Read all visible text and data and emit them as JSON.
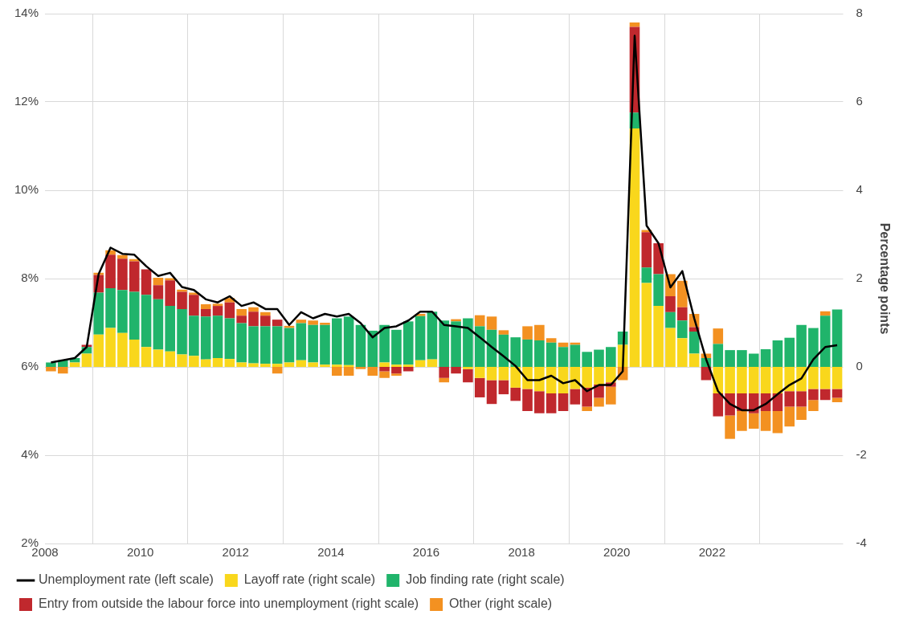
{
  "chart_data": {
    "type": "bar",
    "y2label": "Percentage points",
    "stacked": true,
    "grid": true,
    "legend": "bottom",
    "x": [
      2008.125,
      2008.375,
      2008.625,
      2008.875,
      2009.125,
      2009.375,
      2009.625,
      2009.875,
      2010.125,
      2010.375,
      2010.625,
      2010.875,
      2011.125,
      2011.375,
      2011.625,
      2011.875,
      2012.125,
      2012.375,
      2012.625,
      2012.875,
      2013.125,
      2013.375,
      2013.625,
      2013.875,
      2014.125,
      2014.375,
      2014.625,
      2014.875,
      2015.125,
      2015.375,
      2015.625,
      2015.875,
      2016.125,
      2016.375,
      2016.625,
      2016.875,
      2017.125,
      2017.375,
      2017.625,
      2017.875,
      2018.125,
      2018.375,
      2018.625,
      2018.875,
      2019.125,
      2019.375,
      2019.625,
      2019.875,
      2020.125,
      2020.375,
      2020.625,
      2020.875,
      2021.125,
      2021.375,
      2021.625,
      2021.875,
      2022.125,
      2022.375,
      2022.625,
      2022.875,
      2023.125,
      2023.375,
      2023.625,
      2023.875,
      2024.125,
      2024.375,
      2024.625
    ],
    "xlim": [
      2008,
      2024.75
    ],
    "xticks": [
      2008,
      2010,
      2012,
      2014,
      2016,
      2018,
      2020,
      2022
    ],
    "ylim": [
      2,
      14
    ],
    "yticks": [
      {
        "value": 2,
        "label": "2%"
      },
      {
        "value": 4,
        "label": "4%"
      },
      {
        "value": 6,
        "label": "6%"
      },
      {
        "value": 8,
        "label": "8%"
      },
      {
        "value": 10,
        "label": "10%"
      },
      {
        "value": 12,
        "label": "12%"
      },
      {
        "value": 14,
        "label": "14%"
      }
    ],
    "y2lim": [
      -4,
      8
    ],
    "y2ticks": [
      -4,
      -2,
      0,
      2,
      4,
      6,
      8
    ],
    "series": [
      {
        "name": "Unemployment rate (left scale)",
        "type": "line",
        "color": "#000000",
        "values": [
          6.1,
          6.15,
          6.2,
          6.45,
          8.1,
          8.7,
          8.56,
          8.54,
          8.28,
          8.06,
          8.13,
          7.81,
          7.74,
          7.53,
          7.46,
          7.6,
          7.38,
          7.46,
          7.31,
          7.31,
          6.95,
          7.24,
          7.1,
          7.2,
          7.14,
          7.2,
          6.99,
          6.67,
          6.88,
          6.92,
          7.05,
          7.25,
          7.25,
          6.95,
          6.92,
          6.88,
          6.67,
          6.45,
          6.24,
          6.02,
          5.7,
          5.7,
          5.8,
          5.63,
          5.7,
          5.45,
          5.59,
          5.59,
          5.9,
          13.5,
          9.2,
          8.8,
          7.8,
          8.17,
          7.1,
          6.17,
          5.45,
          5.16,
          5.02,
          5.02,
          5.16,
          5.38,
          5.59,
          5.74,
          6.17,
          6.45,
          6.49
        ]
      },
      {
        "name": "Layoff rate (right scale)",
        "axis": "y2",
        "color": "#f9d71c",
        "values": [
          0,
          0,
          0.1,
          0.3,
          0.73,
          0.88,
          0.77,
          0.62,
          0.45,
          0.39,
          0.35,
          0.28,
          0.25,
          0.17,
          0.2,
          0.18,
          0.1,
          0.08,
          0.07,
          0.07,
          0.1,
          0.15,
          0.1,
          0.05,
          0.05,
          0.04,
          0,
          0,
          0.1,
          0.05,
          0.05,
          0.15,
          0.17,
          0,
          0,
          -0.05,
          -0.25,
          -0.3,
          -0.3,
          -0.47,
          -0.5,
          -0.55,
          -0.6,
          -0.6,
          -0.5,
          -0.47,
          -0.4,
          -0.35,
          0.5,
          5.4,
          1.9,
          1.38,
          0.88,
          0.65,
          0.3,
          0,
          -0.6,
          -0.6,
          -0.6,
          -0.6,
          -0.6,
          -0.6,
          -0.55,
          -0.55,
          -0.5,
          -0.5,
          -0.5
        ]
      },
      {
        "name": "Job finding rate (right scale)",
        "axis": "y2",
        "color": "#20b46b",
        "values": [
          0.1,
          0.15,
          0.1,
          0.15,
          0.95,
          0.9,
          0.97,
          1.08,
          1.18,
          1.14,
          1.03,
          1.03,
          0.91,
          0.97,
          0.96,
          0.92,
          0.89,
          0.84,
          0.85,
          0.85,
          0.78,
          0.84,
          0.85,
          0.9,
          1.05,
          1.1,
          0.95,
          0.82,
          0.85,
          0.79,
          0.98,
          1.0,
          1.08,
          1.05,
          1.03,
          1.1,
          0.92,
          0.84,
          0.73,
          0.67,
          0.62,
          0.6,
          0.55,
          0.45,
          0.5,
          0.34,
          0.39,
          0.45,
          0.3,
          0.36,
          0.35,
          0.72,
          0.36,
          0.4,
          0.5,
          0.2,
          0.52,
          0.38,
          0.38,
          0.3,
          0.4,
          0.6,
          0.66,
          0.95,
          0.88,
          1.16,
          1.3
        ]
      },
      {
        "name": "Entry from outside the labour force into unemployment (right scale)",
        "axis": "y2",
        "color": "#c0282d",
        "values": [
          0,
          0,
          0,
          0.05,
          0.4,
          0.76,
          0.71,
          0.69,
          0.58,
          0.32,
          0.58,
          0.39,
          0.47,
          0.17,
          0.22,
          0.36,
          0.17,
          0.33,
          0.24,
          0.15,
          0,
          0,
          0,
          0,
          0,
          0,
          0,
          0,
          -0.1,
          -0.15,
          -0.1,
          0,
          null,
          -0.25,
          -0.15,
          -0.3,
          -0.44,
          -0.54,
          -0.32,
          -0.3,
          -0.5,
          -0.5,
          -0.45,
          -0.4,
          -0.35,
          -0.43,
          -0.3,
          -0.1,
          0,
          1.94,
          0.8,
          0.7,
          0.36,
          0.3,
          0.1,
          -0.3,
          -0.52,
          -0.5,
          -0.4,
          -0.45,
          -0.4,
          -0.4,
          -0.35,
          -0.35,
          -0.25,
          -0.25,
          -0.2
        ]
      },
      {
        "name": "Other (right scale)",
        "axis": "y2",
        "color": "#f39121",
        "values": [
          -0.1,
          -0.15,
          0,
          0,
          0.05,
          0.1,
          0.08,
          0.05,
          null,
          0.17,
          0.05,
          0.05,
          0.05,
          0.11,
          0.05,
          0.1,
          0.15,
          0.1,
          0.08,
          -0.15,
          0.05,
          0.08,
          0.1,
          0.05,
          -0.2,
          -0.2,
          -0.05,
          -0.2,
          -0.15,
          -0.05,
          0,
          0.05,
          0,
          -0.1,
          0.05,
          0,
          0.25,
          0.3,
          0.1,
          0,
          0.3,
          0.35,
          0.1,
          0.1,
          0.05,
          -0.1,
          -0.2,
          -0.4,
          -0.3,
          0.1,
          0.05,
          0,
          0.5,
          0.6,
          0.3,
          0.1,
          0.35,
          -0.53,
          -0.45,
          -0.35,
          -0.45,
          -0.5,
          -0.45,
          -0.3,
          -0.25,
          0.1,
          -0.1
        ]
      }
    ]
  }
}
